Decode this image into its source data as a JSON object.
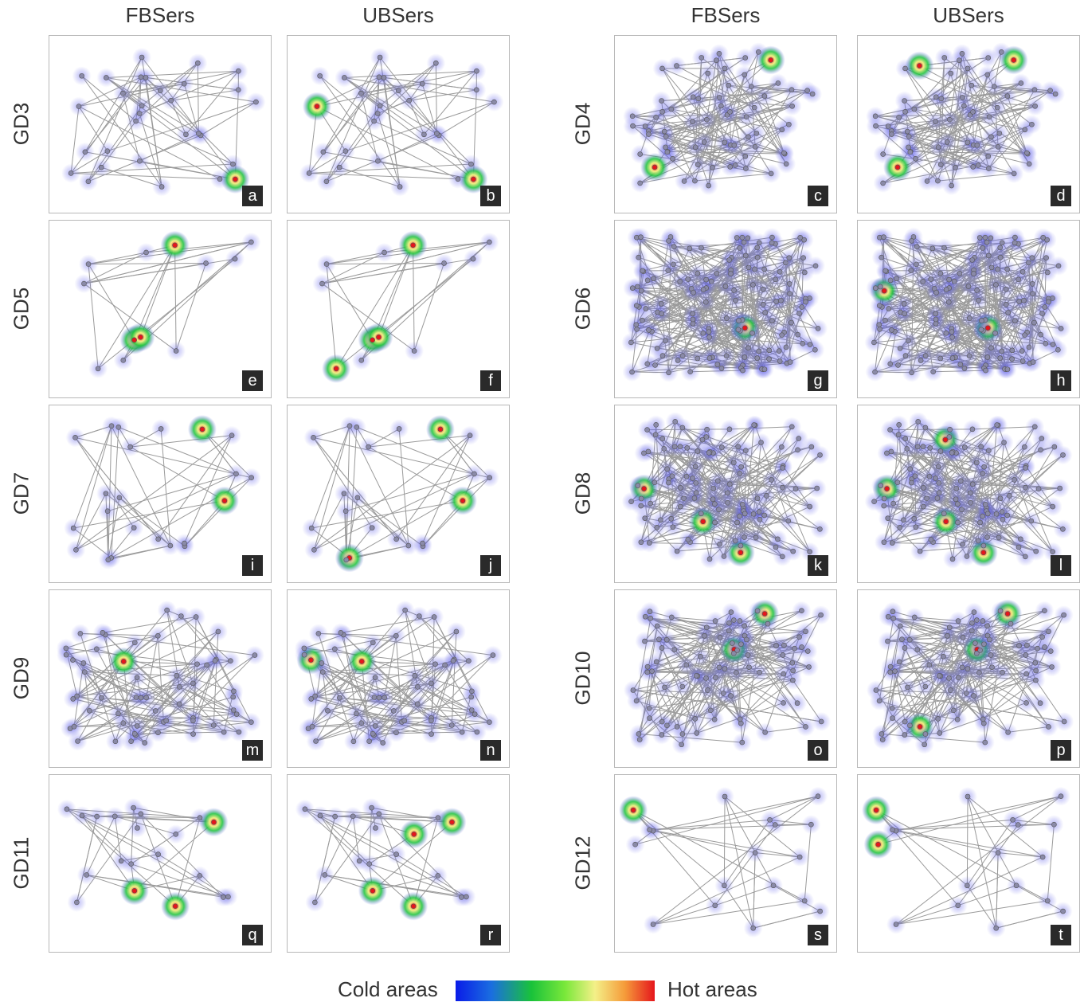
{
  "columns": [
    "FBSers",
    "UBSers",
    "FBSers",
    "UBSers"
  ],
  "rows_left": [
    "GD3",
    "GD5",
    "GD7",
    "GD9",
    "GD11"
  ],
  "rows_right": [
    "GD4",
    "GD6",
    "GD8",
    "GD10",
    "GD12"
  ],
  "panel_tags": [
    "a",
    "b",
    "c",
    "d",
    "e",
    "f",
    "g",
    "h",
    "i",
    "j",
    "k",
    "l",
    "m",
    "n",
    "o",
    "p",
    "q",
    "r",
    "s",
    "t"
  ],
  "legend": {
    "cold": "Cold areas",
    "hot": "Hot areas"
  },
  "colors": {
    "cold": "#0a1ce8",
    "green": "#19c23a",
    "yellow": "#f4f088",
    "hot": "#e5161c",
    "node": "#8a8aa8",
    "edge": "#9a9a9a"
  }
}
